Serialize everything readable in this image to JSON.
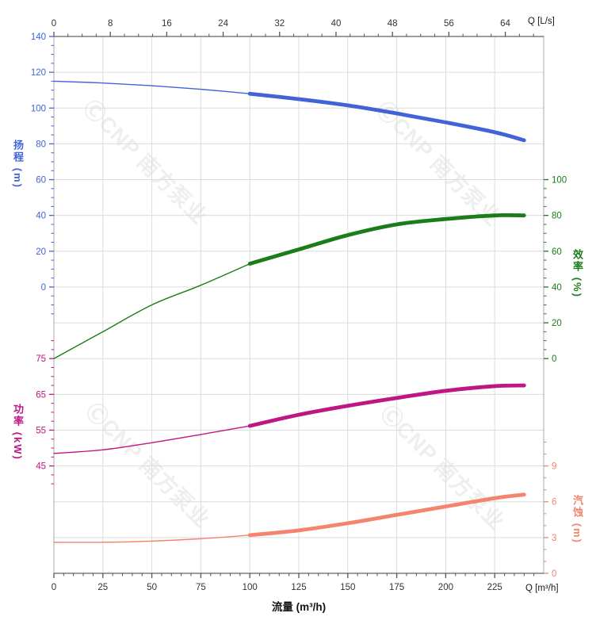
{
  "watermark": {
    "text": "ⒸCNP 南方泵业"
  },
  "axis_titles": {
    "head": "扬程 (m)",
    "power": "功率 (kW)",
    "eff": "效率 (%)",
    "npsh": "汽蚀 (m)",
    "flow": "流量 (m³/h)"
  },
  "units": {
    "top": "Q [L/s]",
    "bottom": "Q [m³/h]"
  },
  "colors": {
    "head": "#4063d8",
    "eff": "#1a7d1a",
    "power": "#c01585",
    "npsh": "#f5846e",
    "grid": "#dcdcdc",
    "border_heavy": "#7d7d7d",
    "border_light": "#a8a8a8",
    "tick_dark": "#555555",
    "label_dark": "#333333"
  },
  "chart_data": {
    "type": "line",
    "title": "",
    "xlabel_bottom": "Q [m³/h]",
    "xlabel_top": "Q [L/s]",
    "x_axis_title": "流量 (m³/h)",
    "grid": {
      "rows": 15,
      "cols": 10,
      "visible": true
    },
    "x_axis": {
      "bottom": {
        "unit": "m³/h",
        "range": [
          0,
          250
        ],
        "ticks": [
          0,
          25,
          50,
          75,
          100,
          125,
          150,
          175,
          200,
          225
        ],
        "minor_step": 5,
        "minor_max": 245
      },
      "top": {
        "unit": "L/s",
        "ticks": [
          0,
          8,
          16,
          24,
          32,
          40,
          48,
          56,
          64
        ],
        "minor_step": 2,
        "minor_max": 68,
        "to_m3h": 3.6
      }
    },
    "q_values_m3h": [
      0,
      25,
      50,
      75,
      100,
      125,
      150,
      175,
      200,
      225,
      240
    ],
    "series": [
      {
        "key": "head",
        "name": "扬程",
        "unit": "m",
        "color": "#4063d8",
        "side": "left",
        "ticks": [
          140,
          120,
          100,
          80,
          60,
          40,
          20,
          0
        ],
        "row_start": 0,
        "value_start": 140,
        "units_per_row": 20,
        "minor_rows": [
          0,
          7.75
        ],
        "minor_div": 4,
        "bold_from_q": 100,
        "values": [
          115,
          114,
          112.5,
          110.5,
          108,
          105,
          101.5,
          97,
          92,
          86.5,
          82
        ]
      },
      {
        "key": "eff",
        "name": "效率",
        "unit": "%",
        "color": "#1a7d1a",
        "side": "right",
        "ticks": [
          100,
          80,
          60,
          40,
          20,
          0
        ],
        "row_start": 4,
        "value_start": 100,
        "units_per_row": 20,
        "minor_rows": [
          4,
          9
        ],
        "minor_div": 4,
        "bold_from_q": 100,
        "values": [
          0,
          15,
          30,
          41,
          53,
          61,
          69,
          75,
          78,
          80,
          80
        ]
      },
      {
        "key": "power",
        "name": "功率",
        "unit": "kW",
        "color": "#c01585",
        "side": "left",
        "ticks": [
          75,
          65,
          55,
          45
        ],
        "row_start": 9,
        "value_start": 75,
        "units_per_row": 10,
        "minor_rows": [
          8.5,
          12.5
        ],
        "minor_div": 4,
        "bold_from_q": 100,
        "values": [
          48.5,
          49.5,
          51.5,
          53.8,
          56.2,
          59.3,
          61.8,
          64,
          66,
          67.3,
          67.5
        ]
      },
      {
        "key": "npsh",
        "name": "汽蚀",
        "unit": "m",
        "color": "#f5846e",
        "side": "right",
        "ticks": [
          9,
          6,
          3,
          0
        ],
        "row_start": 12,
        "value_start": 9,
        "units_per_row": 3,
        "minor_rows": [
          11.3333,
          15
        ],
        "minor_div": 3,
        "bold_from_q": 100,
        "values": [
          2.6,
          2.6,
          2.7,
          2.9,
          3.2,
          3.6,
          4.2,
          4.9,
          5.6,
          6.3,
          6.6
        ]
      }
    ]
  }
}
